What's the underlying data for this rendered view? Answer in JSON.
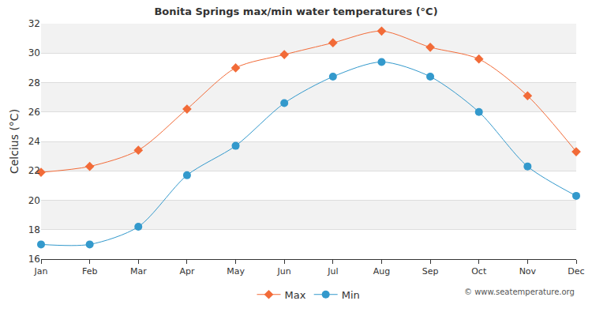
{
  "chart_data": {
    "type": "line",
    "title": "Bonita Springs max/min water temperatures (°C)",
    "y_label": "Celcius (°C)",
    "categories": [
      "Jan",
      "Feb",
      "Mar",
      "Apr",
      "May",
      "Jun",
      "Jul",
      "Aug",
      "Sep",
      "Oct",
      "Nov",
      "Dec"
    ],
    "series": [
      {
        "name": "Max",
        "color": "#f26b38",
        "marker": "diamond",
        "values": [
          21.9,
          22.3,
          23.4,
          26.2,
          29.0,
          29.9,
          30.7,
          31.5,
          30.4,
          29.6,
          27.1,
          23.3
        ]
      },
      {
        "name": "Min",
        "color": "#3399cc",
        "marker": "circle",
        "values": [
          17.0,
          17.0,
          18.2,
          21.7,
          23.7,
          26.6,
          28.4,
          29.4,
          28.4,
          26.0,
          22.3,
          20.3
        ]
      }
    ],
    "ylim": [
      16,
      32
    ],
    "yticks": [
      16,
      18,
      20,
      22,
      24,
      26,
      28,
      30,
      32
    ],
    "grid": true,
    "legend": "bottom",
    "annotations": [
      "© www.seatemperature.org"
    ]
  }
}
